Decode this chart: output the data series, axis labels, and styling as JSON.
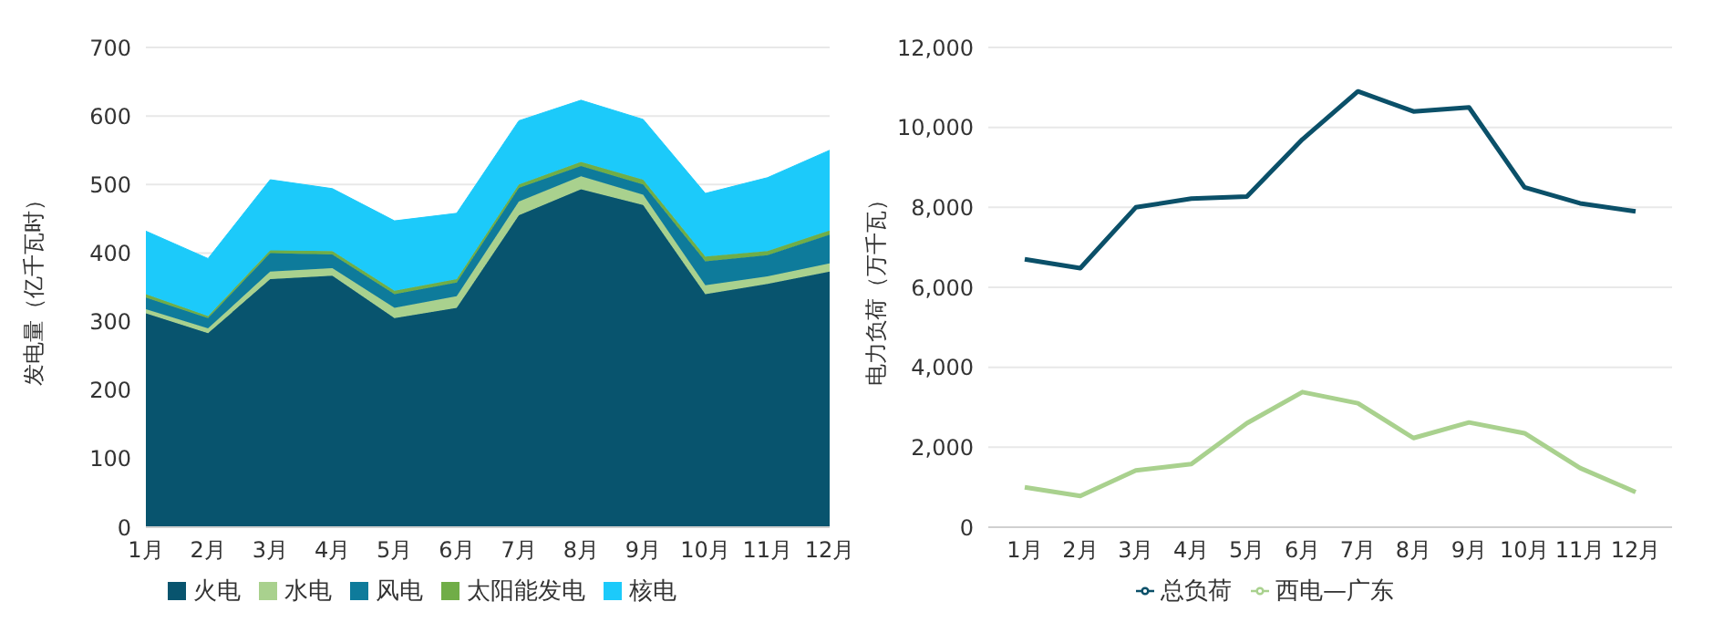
{
  "chart_data": [
    {
      "type": "area",
      "stacked": true,
      "ylabel": "发电量（亿千瓦时）",
      "categories": [
        "1月",
        "2月",
        "3月",
        "4月",
        "5月",
        "6月",
        "7月",
        "8月",
        "9月",
        "10月",
        "11月",
        "12月"
      ],
      "series": [
        {
          "name": "火电",
          "color": "#08546e",
          "values": [
            312,
            283,
            362,
            367,
            305,
            320,
            455,
            493,
            470,
            340,
            355,
            373
          ]
        },
        {
          "name": "水电",
          "color": "#a9d18e",
          "values": [
            6,
            7,
            11,
            11,
            15,
            17,
            20,
            19,
            15,
            13,
            11,
            12
          ]
        },
        {
          "name": "风电",
          "color": "#0e7b9b",
          "values": [
            17,
            15,
            27,
            20,
            20,
            20,
            20,
            15,
            15,
            35,
            31,
            42
          ]
        },
        {
          "name": "太阳能发电",
          "color": "#70ad47",
          "values": [
            5,
            3,
            4,
            5,
            5,
            5,
            5,
            6,
            7,
            7,
            6,
            6
          ]
        },
        {
          "name": "核电",
          "color": "#1ccafa",
          "values": [
            92,
            84,
            103,
            91,
            102,
            96,
            93,
            90,
            88,
            92,
            107,
            117
          ]
        }
      ],
      "ylim": [
        0,
        700
      ],
      "yticks": [
        0,
        100,
        200,
        300,
        400,
        500,
        600,
        700
      ],
      "grid": "y",
      "legend": "bottom"
    },
    {
      "type": "line",
      "ylabel": "电力负荷（万千瓦）",
      "categories": [
        "1月",
        "2月",
        "3月",
        "4月",
        "5月",
        "6月",
        "7月",
        "8月",
        "9月",
        "10月",
        "11月",
        "12月"
      ],
      "series": [
        {
          "name": "总负荷",
          "color": "#0b5069",
          "values": [
            6700,
            6480,
            8000,
            8220,
            8270,
            9700,
            10900,
            10400,
            10500,
            8500,
            8100,
            7900
          ]
        },
        {
          "name": "西电—广东",
          "color": "#a9d18e",
          "values": [
            1000,
            780,
            1420,
            1580,
            2600,
            3380,
            3100,
            2230,
            2620,
            2350,
            1480,
            880
          ]
        }
      ],
      "ylim": [
        0,
        12000
      ],
      "yticks": [
        0,
        {
          "value": 2000,
          "label": "2,000"
        },
        {
          "value": 4000,
          "label": "4,000"
        },
        {
          "value": 6000,
          "label": "6,000"
        },
        {
          "value": 8000,
          "label": "8,000"
        },
        {
          "value": 10000,
          "label": "10,000"
        },
        {
          "value": 12000,
          "label": "12,000"
        }
      ],
      "grid": "y",
      "legend": "bottom",
      "marker": "none"
    }
  ]
}
